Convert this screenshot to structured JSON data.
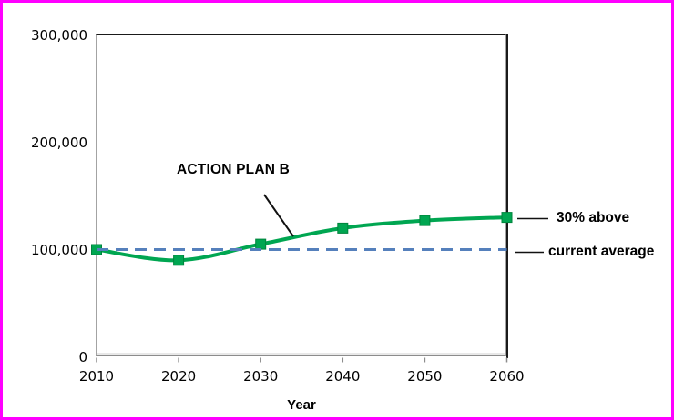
{
  "chart_data": {
    "type": "line",
    "title": "",
    "xlabel": "Year",
    "ylabel": "",
    "xlim": [
      2010,
      2060
    ],
    "ylim": [
      0,
      300000
    ],
    "grid": false,
    "legend_position": "none",
    "x": [
      2010,
      2020,
      2030,
      2040,
      2050,
      2060
    ],
    "xtick_labels": [
      "2010",
      "2020",
      "2030",
      "2040",
      "2050",
      "2060"
    ],
    "ytick_values": [
      0,
      100000,
      200000,
      300000
    ],
    "ytick_labels": [
      "0",
      "100,000",
      "200,000",
      "300,000"
    ],
    "series": [
      {
        "name": "ACTION PLAN B",
        "values": [
          100000,
          90000,
          105000,
          120000,
          127000,
          130000
        ],
        "color": "#00A651",
        "style": "smooth-solid",
        "marker": "square",
        "line_width": 4
      },
      {
        "name": "current average",
        "values": [
          100000,
          100000,
          100000,
          100000,
          100000,
          100000
        ],
        "color": "#5580BC",
        "style": "dashed",
        "marker": "none",
        "line_width": 3
      }
    ],
    "annotations": {
      "series_label": "ACTION PLAN B",
      "above_label": "30% above",
      "average_label": "current average"
    },
    "colors": {
      "frame_border": "#FF00FF",
      "background": "#FFFFFF",
      "axis_dark": "#1A1A1A",
      "axis_gray": "#8C8C8C",
      "text": "#000000",
      "leader_line": "#111111"
    }
  }
}
